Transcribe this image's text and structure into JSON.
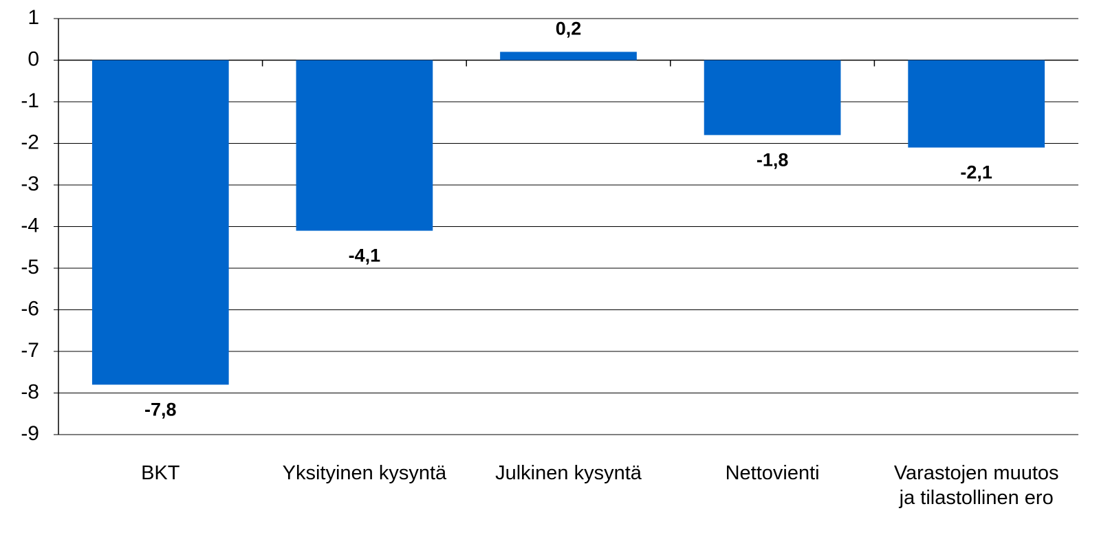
{
  "chart_data": {
    "type": "bar",
    "categories": [
      "BKT",
      "Yksityinen kysyntä",
      "Julkinen kysyntä",
      "Nettovienti",
      "Varastojen muutos ja tilastollinen ero"
    ],
    "values": [
      -7.8,
      -4.1,
      0.2,
      -1.8,
      -2.1
    ],
    "value_labels": [
      "-7,8",
      "-4,1",
      "0,2",
      "-1,8",
      "-2,1"
    ],
    "color": "#0066cc",
    "ylim": [
      -9,
      1
    ],
    "yticks": [
      1,
      0,
      -1,
      -2,
      -3,
      -4,
      -5,
      -6,
      -7,
      -8,
      -9
    ],
    "grid": true
  }
}
